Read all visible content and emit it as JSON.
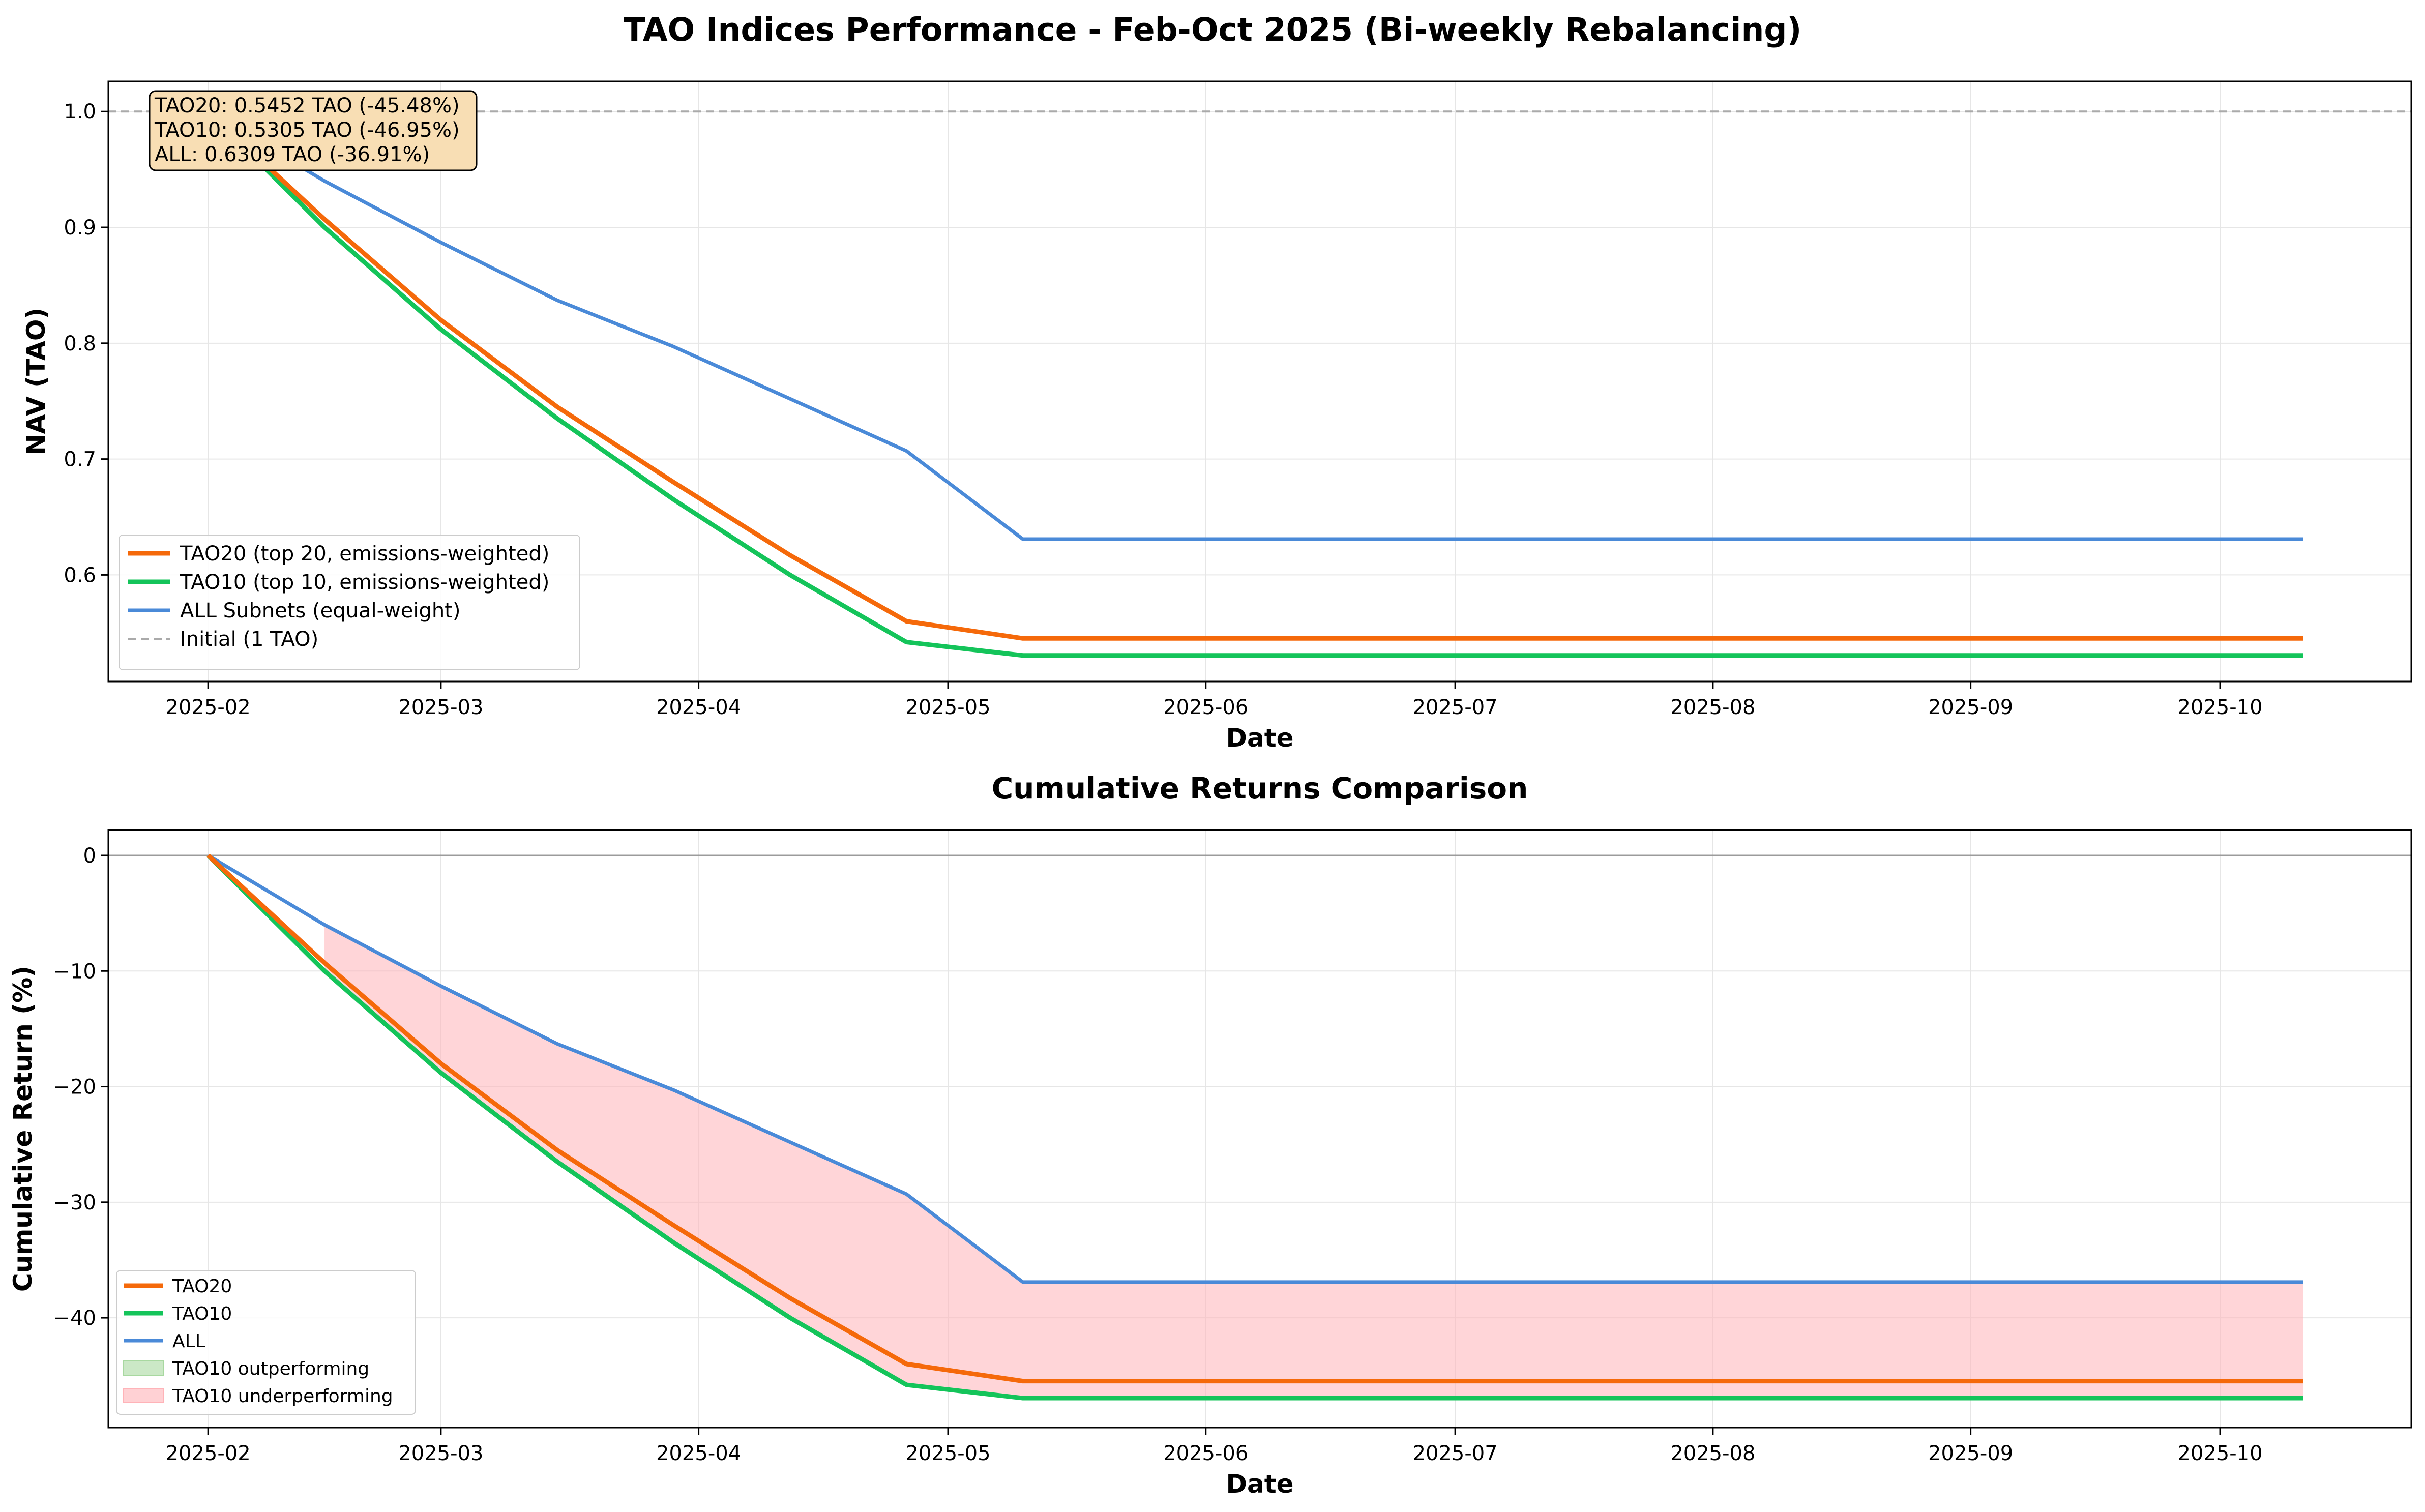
{
  "figure": {
    "suptitle": "TAO Indices Performance - Feb-Oct 2025 (Bi-weekly Rebalancing)"
  },
  "colors": {
    "tao20": "#f5690a",
    "tao10": "#14c45a",
    "all": "#4a8ad8",
    "initial": "#aaaaaa",
    "zero_line": "#888888",
    "fill_under": "#ffb3b8",
    "fill_over": "#a8d8a0",
    "annotation_bg": "#f8deb4"
  },
  "chart_data": [
    {
      "type": "line",
      "title": "",
      "xlabel": "Date",
      "ylabel": "NAV (TAO)",
      "x_ticks": [
        "2025-02",
        "2025-03",
        "2025-04",
        "2025-05",
        "2025-06",
        "2025-07",
        "2025-08",
        "2025-09",
        "2025-10"
      ],
      "y_ticks": [
        "0.6",
        "0.7",
        "0.8",
        "0.9",
        "1.0"
      ],
      "xlim": [
        "2025-01-20",
        "2025-10-24"
      ],
      "ylim": [
        0.508,
        1.026
      ],
      "grid": true,
      "legend_position": "lower-left",
      "x": [
        "2025-02-01",
        "2025-02-15",
        "2025-03-01",
        "2025-03-15",
        "2025-03-29",
        "2025-04-12",
        "2025-04-26",
        "2025-05-10",
        "2025-05-24",
        "2025-06-07",
        "2025-06-21",
        "2025-07-05",
        "2025-07-19",
        "2025-08-02",
        "2025-08-16",
        "2025-08-30",
        "2025-09-13",
        "2025-09-27",
        "2025-10-11"
      ],
      "series": [
        {
          "name": "TAO20 (top 20, emissions-weighted)",
          "short_name": "TAO20",
          "key": "tao20",
          "values": [
            1.0,
            0.907,
            0.82,
            0.745,
            0.68,
            0.617,
            0.56,
            0.5452,
            0.5452,
            0.5452,
            0.5452,
            0.5452,
            0.5452,
            0.5452,
            0.5452,
            0.5452,
            0.5452,
            0.5452,
            0.5452
          ]
        },
        {
          "name": "TAO10 (top 10, emissions-weighted)",
          "short_name": "TAO10",
          "key": "tao10",
          "values": [
            1.0,
            0.9,
            0.812,
            0.735,
            0.665,
            0.6,
            0.542,
            0.5305,
            0.5305,
            0.5305,
            0.5305,
            0.5305,
            0.5305,
            0.5305,
            0.5305,
            0.5305,
            0.5305,
            0.5305,
            0.5305
          ]
        },
        {
          "name": "ALL Subnets (equal-weight)",
          "short_name": "ALL",
          "key": "all",
          "values": [
            1.0,
            0.94,
            0.887,
            0.837,
            0.797,
            0.752,
            0.707,
            0.6309,
            0.6309,
            0.6309,
            0.6309,
            0.6309,
            0.6309,
            0.6309,
            0.6309,
            0.6309,
            0.6309,
            0.6309,
            0.6309
          ]
        }
      ],
      "reference_line": {
        "label": "Initial (1 TAO)",
        "y": 1.0
      },
      "annotation": [
        "TAO20: 0.5452 TAO (-45.48%)",
        "TAO10: 0.5305 TAO (-46.95%)",
        "ALL: 0.6309 TAO (-36.91%)"
      ]
    },
    {
      "type": "line",
      "title": "Cumulative Returns Comparison",
      "xlabel": "Date",
      "ylabel": "Cumulative Return (%)",
      "x_ticks": [
        "2025-02",
        "2025-03",
        "2025-04",
        "2025-05",
        "2025-06",
        "2025-07",
        "2025-08",
        "2025-09",
        "2025-10"
      ],
      "y_ticks": [
        "0",
        "−10",
        "−20",
        "−30",
        "−40"
      ],
      "xlim": [
        "2025-01-20",
        "2025-10-24"
      ],
      "ylim": [
        -49.5,
        2.2
      ],
      "grid": true,
      "legend_position": "lower-left",
      "x": [
        "2025-02-01",
        "2025-02-15",
        "2025-03-01",
        "2025-03-15",
        "2025-03-29",
        "2025-04-12",
        "2025-04-26",
        "2025-05-10",
        "2025-05-24",
        "2025-06-07",
        "2025-06-21",
        "2025-07-05",
        "2025-07-19",
        "2025-08-02",
        "2025-08-16",
        "2025-08-30",
        "2025-09-13",
        "2025-09-27",
        "2025-10-11"
      ],
      "series": [
        {
          "name": "TAO20",
          "key": "tao20",
          "values": [
            0,
            -9.3,
            -18.0,
            -25.5,
            -32.0,
            -38.3,
            -44.0,
            -45.48,
            -45.48,
            -45.48,
            -45.48,
            -45.48,
            -45.48,
            -45.48,
            -45.48,
            -45.48,
            -45.48,
            -45.48,
            -45.48
          ]
        },
        {
          "name": "TAO10",
          "key": "tao10",
          "values": [
            0,
            -10.0,
            -18.8,
            -26.5,
            -33.5,
            -40.0,
            -45.8,
            -46.95,
            -46.95,
            -46.95,
            -46.95,
            -46.95,
            -46.95,
            -46.95,
            -46.95,
            -46.95,
            -46.95,
            -46.95,
            -46.95
          ]
        },
        {
          "name": "ALL",
          "key": "all",
          "values": [
            0,
            -6.0,
            -11.3,
            -16.3,
            -20.3,
            -24.8,
            -29.3,
            -36.91,
            -36.91,
            -36.91,
            -36.91,
            -36.91,
            -36.91,
            -36.91,
            -36.91,
            -36.91,
            -36.91,
            -36.91,
            -36.91
          ]
        }
      ],
      "fill_legend": [
        "TAO10 outperforming",
        "TAO10 underperforming"
      ],
      "zero_line_y": 0
    }
  ]
}
